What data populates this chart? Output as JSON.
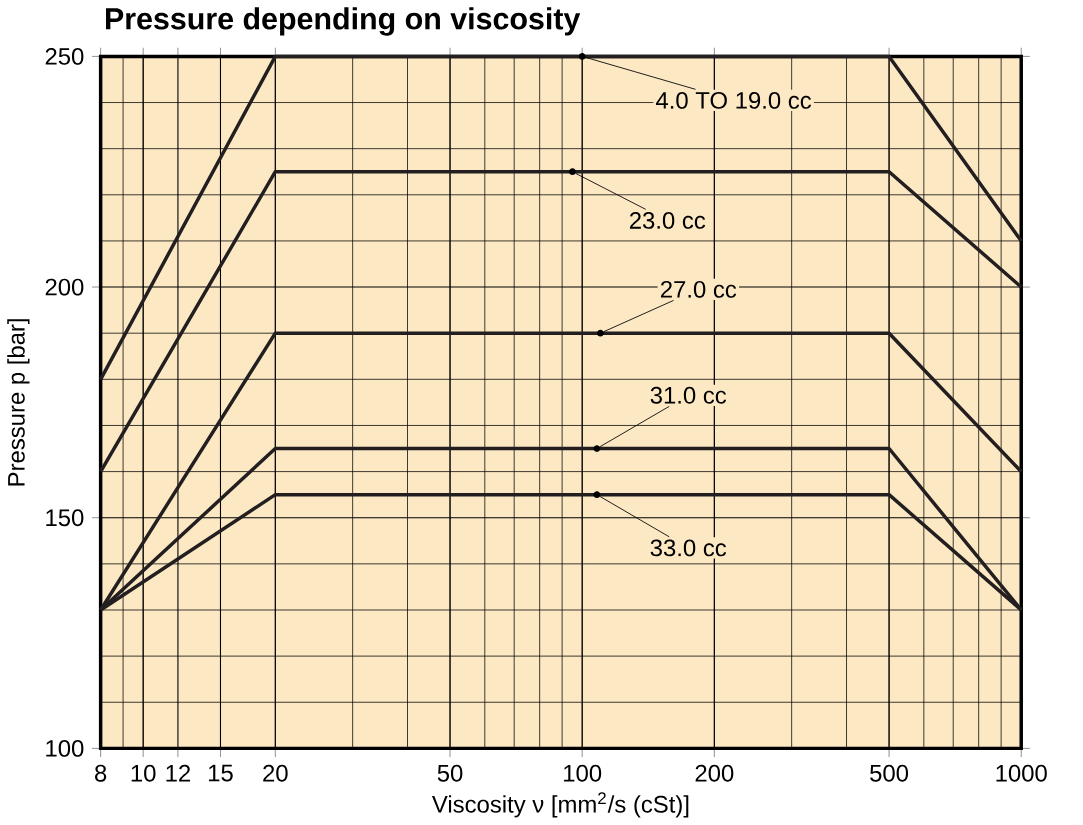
{
  "chart_data": {
    "type": "line",
    "title": "Pressure depending on viscosity",
    "xlabel": "Viscosity ν [mm$^{2}$/s (cSt)]",
    "ylabel": "Pressure p [bar]",
    "log": "x",
    "grid": true,
    "marker": "none",
    "line_style": "solid",
    "xlim": [
      8,
      1000
    ],
    "ylim": [
      100,
      250
    ],
    "xticks": [
      8,
      10,
      12,
      15,
      20,
      50,
      100,
      200,
      500,
      1000
    ],
    "yticks": [
      100,
      150,
      200,
      250
    ],
    "x": [
      8,
      20,
      500,
      1000
    ],
    "series": [
      {
        "name": "4.0  TO  19.0 cc",
        "color": "#231f20",
        "values": [
          180,
          250,
          250,
          210
        ]
      },
      {
        "name": "23.0 cc",
        "color": "#231f20",
        "values": [
          160,
          225,
          225,
          200
        ]
      },
      {
        "name": "27.0 cc",
        "color": "#231f20",
        "values": [
          130,
          190,
          190,
          160
        ]
      },
      {
        "name": "31.0 cc",
        "color": "#231f20",
        "values": [
          130,
          165,
          165,
          130
        ]
      },
      {
        "name": "33.0 cc",
        "color": "#231f20",
        "values": [
          130,
          155,
          155,
          130
        ]
      }
    ]
  }
}
